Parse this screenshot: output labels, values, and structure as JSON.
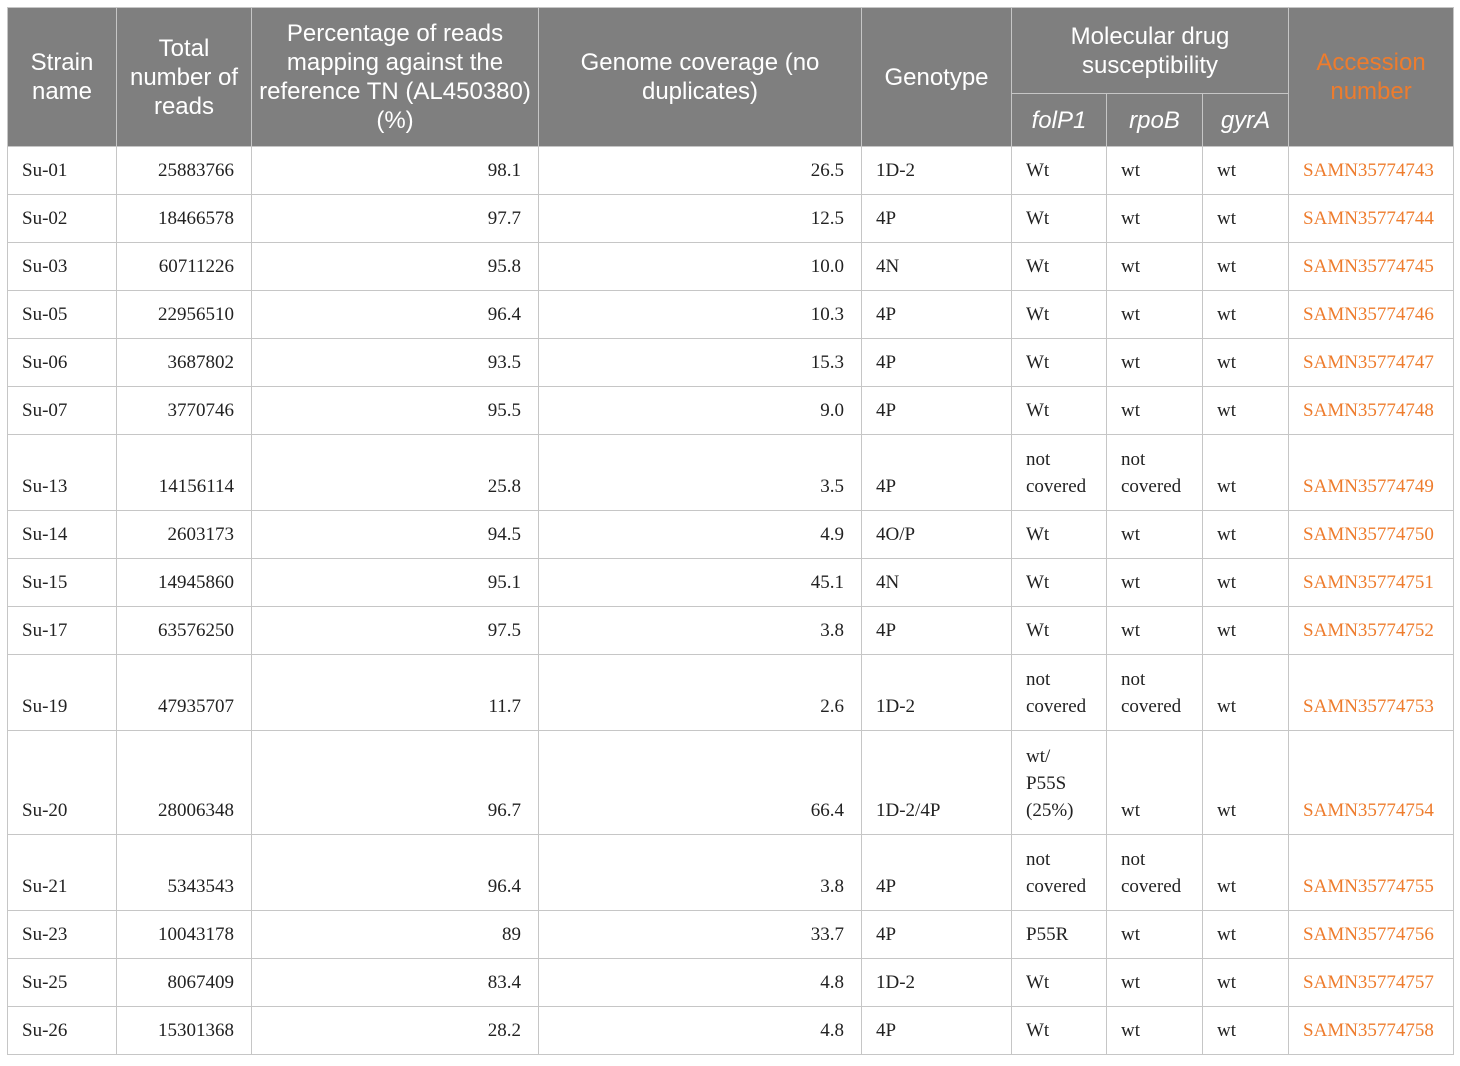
{
  "table": {
    "headers": {
      "strain_name": "Strain name",
      "total_reads": "Total number of reads",
      "pct_mapping": "Percentage of reads mapping against the reference TN (AL450380) (%)",
      "genome_coverage": "Genome coverage (no duplicates)",
      "genotype": "Genotype",
      "molecular": "Molecular drug susceptibility",
      "folP1": "folP1",
      "rpoB": "rpoB",
      "gyrA": "gyrA",
      "accession": "Accession number"
    },
    "rows": [
      {
        "strain": "Su-01",
        "reads": "25883766",
        "pct": "98.1",
        "coverage": "26.5",
        "genotype": "1D-2",
        "folP1": "Wt",
        "rpoB": "wt",
        "gyrA": "wt",
        "accession": "SAMN35774743"
      },
      {
        "strain": "Su-02",
        "reads": "18466578",
        "pct": "97.7",
        "coverage": "12.5",
        "genotype": "4P",
        "folP1": "Wt",
        "rpoB": "wt",
        "gyrA": "wt",
        "accession": "SAMN35774744"
      },
      {
        "strain": "Su-03",
        "reads": "60711226",
        "pct": "95.8",
        "coverage": "10.0",
        "genotype": "4N",
        "folP1": "Wt",
        "rpoB": "wt",
        "gyrA": "wt",
        "accession": "SAMN35774745"
      },
      {
        "strain": "Su-05",
        "reads": "22956510",
        "pct": "96.4",
        "coverage": "10.3",
        "genotype": "4P",
        "folP1": "Wt",
        "rpoB": "wt",
        "gyrA": "wt",
        "accession": "SAMN35774746"
      },
      {
        "strain": "Su-06",
        "reads": "3687802",
        "pct": "93.5",
        "coverage": "15.3",
        "genotype": "4P",
        "folP1": "Wt",
        "rpoB": "wt",
        "gyrA": "wt",
        "accession": "SAMN35774747"
      },
      {
        "strain": "Su-07",
        "reads": "3770746",
        "pct": "95.5",
        "coverage": "9.0",
        "genotype": "4P",
        "folP1": "Wt",
        "rpoB": "wt",
        "gyrA": "wt",
        "accession": "SAMN35774748"
      },
      {
        "strain": "Su-13",
        "reads": "14156114",
        "pct": "25.8",
        "coverage": "3.5",
        "genotype": "4P",
        "folP1": "not covered",
        "rpoB": "not covered",
        "gyrA": "wt",
        "accession": "SAMN35774749"
      },
      {
        "strain": "Su-14",
        "reads": "2603173",
        "pct": "94.5",
        "coverage": "4.9",
        "genotype": "4O/P",
        "folP1": "Wt",
        "rpoB": "wt",
        "gyrA": "wt",
        "accession": "SAMN35774750"
      },
      {
        "strain": "Su-15",
        "reads": "14945860",
        "pct": "95.1",
        "coverage": "45.1",
        "genotype": "4N",
        "folP1": "Wt",
        "rpoB": "wt",
        "gyrA": "wt",
        "accession": "SAMN35774751"
      },
      {
        "strain": "Su-17",
        "reads": "63576250",
        "pct": "97.5",
        "coverage": "3.8",
        "genotype": "4P",
        "folP1": "Wt",
        "rpoB": "wt",
        "gyrA": "wt",
        "accession": "SAMN35774752"
      },
      {
        "strain": "Su-19",
        "reads": "47935707",
        "pct": "11.7",
        "coverage": "2.6",
        "genotype": "1D-2",
        "folP1": "not covered",
        "rpoB": "not covered",
        "gyrA": "wt",
        "accession": "SAMN35774753"
      },
      {
        "strain": "Su-20",
        "reads": "28006348",
        "pct": "96.7",
        "coverage": "66.4",
        "genotype": "1D-2/4P",
        "folP1": "wt/ P55S (25%)",
        "rpoB": "wt",
        "gyrA": "wt",
        "accession": "SAMN35774754"
      },
      {
        "strain": "Su-21",
        "reads": "5343543",
        "pct": "96.4",
        "coverage": "3.8",
        "genotype": "4P",
        "folP1": "not covered",
        "rpoB": "not covered",
        "gyrA": "wt",
        "accession": "SAMN35774755"
      },
      {
        "strain": "Su-23",
        "reads": "10043178",
        "pct": "89",
        "coverage": "33.7",
        "genotype": "4P",
        "folP1": "P55R",
        "rpoB": "wt",
        "gyrA": "wt",
        "accession": "SAMN35774756"
      },
      {
        "strain": "Su-25",
        "reads": "8067409",
        "pct": "83.4",
        "coverage": "4.8",
        "genotype": "1D-2",
        "folP1": "Wt",
        "rpoB": "wt",
        "gyrA": "wt",
        "accession": "SAMN35774757"
      },
      {
        "strain": "Su-26",
        "reads": "15301368",
        "pct": "28.2",
        "coverage": "4.8",
        "genotype": "4P",
        "folP1": "Wt",
        "rpoB": "wt",
        "gyrA": "wt",
        "accession": "SAMN35774758"
      }
    ]
  }
}
